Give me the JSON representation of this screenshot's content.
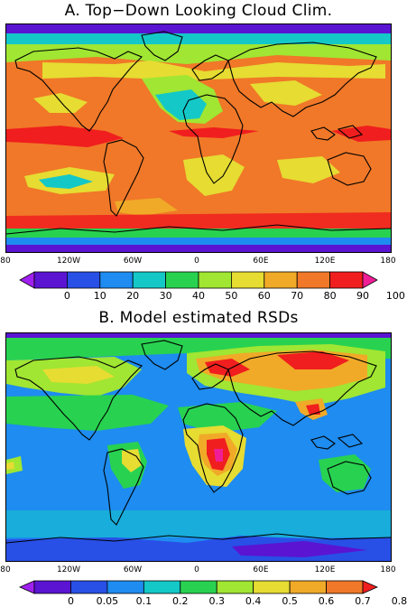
{
  "panels": [
    {
      "title": "A. Top−Down Looking Cloud Clim.",
      "x_tick_labels": [
        "80",
        "120W",
        "60W",
        "0",
        "60E",
        "120E",
        "180"
      ],
      "colorbar": {
        "labels": [
          "0",
          "10",
          "20",
          "30",
          "40",
          "50",
          "60",
          "70",
          "80",
          "90",
          "100"
        ],
        "colors": [
          "#a020f0",
          "#5a14d2",
          "#2850e6",
          "#1e8cf0",
          "#14c8c8",
          "#28d250",
          "#a0e632",
          "#e6dc32",
          "#f0aa28",
          "#f07828",
          "#f01e1e",
          "#f01e96"
        ]
      }
    },
    {
      "title": "B. Model estimated RSDs",
      "x_tick_labels": [
        "80",
        "120W",
        "60W",
        "0",
        "60E",
        "120E",
        "180"
      ],
      "colorbar": {
        "labels": [
          "0",
          "0.05",
          "0.1",
          "0.2",
          "0.3",
          "0.4",
          "0.5",
          "0.6",
          "0.7",
          "0.8"
        ],
        "colors": [
          "#a020f0",
          "#5a14d2",
          "#2850e6",
          "#1e8cf0",
          "#14c8c8",
          "#28d250",
          "#a0e632",
          "#e6dc32",
          "#f0aa28",
          "#f07828",
          "#f01e1e"
        ]
      }
    }
  ],
  "chart_data": [
    {
      "type": "heatmap",
      "title": "A. Top−Down Looking Cloud Clim.",
      "x_ticks": [
        "80",
        "120W",
        "60W",
        "0",
        "60E",
        "120E",
        "180"
      ],
      "color_levels": [
        0,
        10,
        20,
        30,
        40,
        50,
        60,
        70,
        80,
        90,
        100
      ],
      "color_scale": "purple-blue-cyan-green-yellow-orange-red-magenta",
      "legend_placement": "bottom"
    },
    {
      "type": "heatmap",
      "title": "B. Model estimated RSDs",
      "x_ticks": [
        "80",
        "120W",
        "60W",
        "0",
        "60E",
        "120E",
        "180"
      ],
      "color_levels": [
        0,
        0.05,
        0.1,
        0.2,
        0.3,
        0.4,
        0.5,
        0.6,
        0.7,
        0.8
      ],
      "color_scale": "purple-blue-cyan-green-yellow-orange-red-magenta",
      "legend_placement": "bottom"
    }
  ]
}
